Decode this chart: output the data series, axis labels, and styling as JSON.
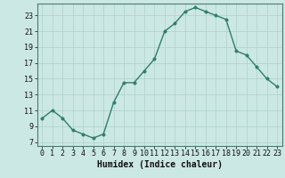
{
  "x": [
    0,
    1,
    2,
    3,
    4,
    5,
    6,
    7,
    8,
    9,
    10,
    11,
    12,
    13,
    14,
    15,
    16,
    17,
    18,
    19,
    20,
    21,
    22,
    23
  ],
  "y": [
    10,
    11,
    10,
    8.5,
    8,
    7.5,
    8,
    12,
    14.5,
    14.5,
    16,
    17.5,
    21,
    22,
    23.5,
    24,
    23.5,
    23,
    22.5,
    18.5,
    18,
    16.5,
    15,
    14
  ],
  "line_color": "#2e7d6e",
  "marker_color": "#2e7d6e",
  "bg_color": "#cce8e4",
  "grid_color": "#afd0cc",
  "xlabel": "Humidex (Indice chaleur)",
  "yticks": [
    7,
    9,
    11,
    13,
    15,
    17,
    19,
    21,
    23
  ],
  "xticks": [
    0,
    1,
    2,
    3,
    4,
    5,
    6,
    7,
    8,
    9,
    10,
    11,
    12,
    13,
    14,
    15,
    16,
    17,
    18,
    19,
    20,
    21,
    22,
    23
  ],
  "ylim": [
    6.5,
    24.5
  ],
  "xlim": [
    -0.5,
    23.5
  ],
  "xlabel_fontsize": 7,
  "tick_fontsize": 6,
  "line_width": 1.0,
  "marker_size": 2.5
}
